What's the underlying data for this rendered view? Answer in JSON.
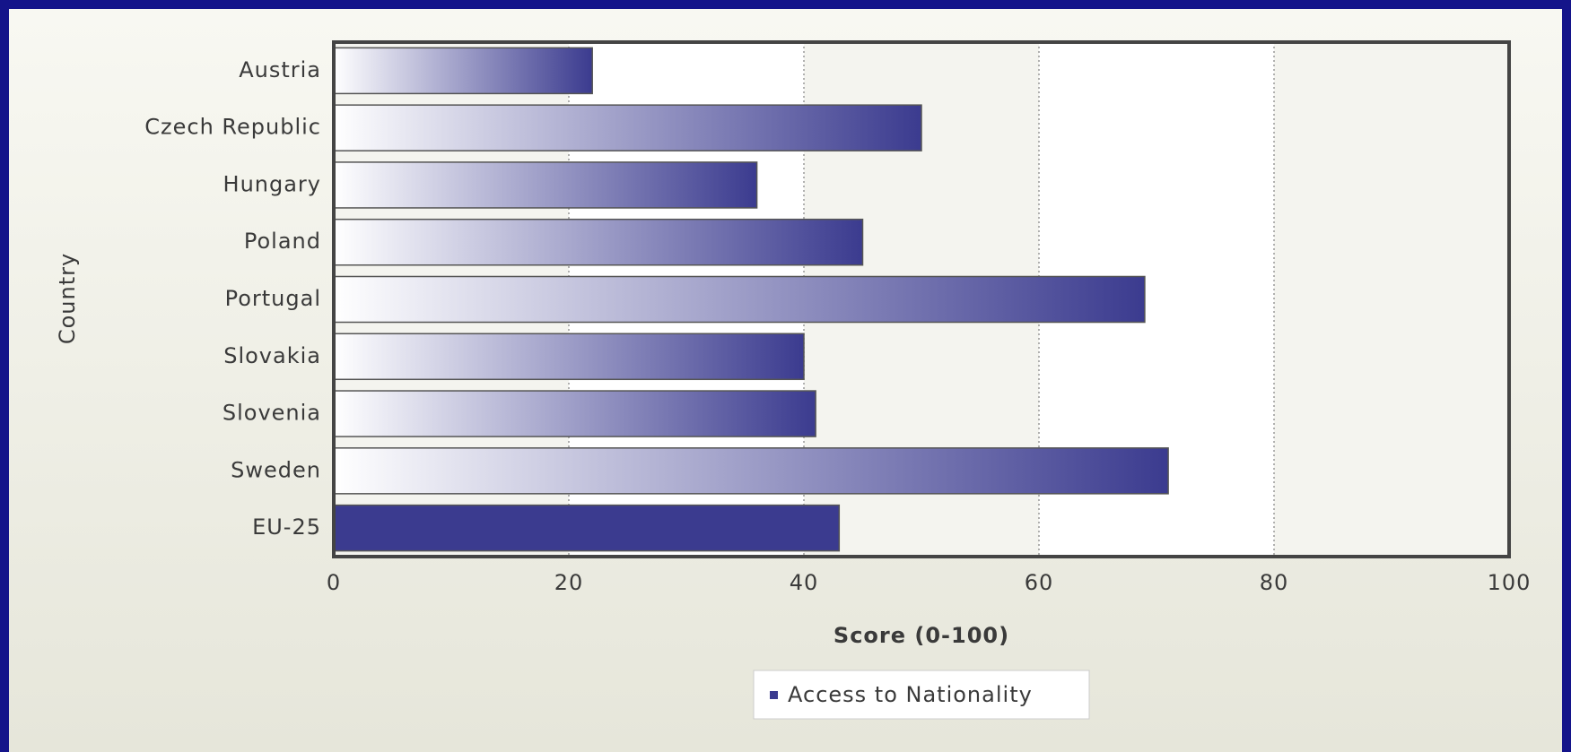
{
  "chart_data": {
    "type": "bar",
    "orientation": "horizontal",
    "x_label": "Score (0-100)",
    "y_label": "Country",
    "categories": [
      "Austria",
      "Czech Republic",
      "Hungary",
      "Poland",
      "Portugal",
      "Slovakia",
      "Slovenia",
      "Sweden",
      "EU-25"
    ],
    "series": [
      {
        "name": "Access to Nationality",
        "color": "#3b3b8f",
        "values": [
          22,
          50,
          36,
          45,
          69,
          40,
          41,
          71,
          43
        ]
      }
    ],
    "bar_styles": [
      "gradient",
      "gradient",
      "gradient",
      "gradient",
      "gradient",
      "gradient",
      "gradient",
      "gradient",
      "solid"
    ],
    "xlim": [
      0,
      100
    ],
    "xticks": [
      0,
      20,
      40,
      60,
      80,
      100
    ],
    "grid": true,
    "legend": "bottom"
  }
}
